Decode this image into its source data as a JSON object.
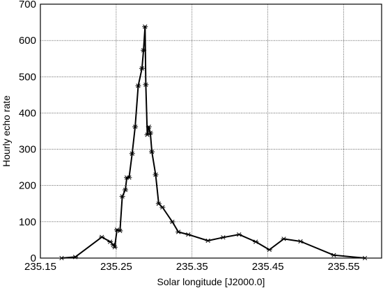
{
  "chart_data": {
    "type": "line",
    "title": "",
    "xlabel": "Solar longitude [J2000.0]",
    "ylabel": "Hourly echo rate",
    "xlim": [
      235.15,
      235.6
    ],
    "ylim": [
      0,
      700
    ],
    "x_ticks": [
      235.15,
      235.25,
      235.35,
      235.45,
      235.55
    ],
    "x_tick_labels": [
      "235.15",
      "235.25",
      "235.35",
      "235.45",
      "235.55"
    ],
    "y_ticks": [
      0,
      100,
      200,
      300,
      400,
      500,
      600,
      700
    ],
    "y_tick_labels": [
      "0",
      "100",
      "200",
      "300",
      "400",
      "500",
      "600",
      "700"
    ],
    "grid": true,
    "marker": "asterisk",
    "line_color": "#000000",
    "series": [
      {
        "x": [
          235.178,
          235.196,
          235.231,
          235.242,
          235.246,
          235.248,
          235.251,
          235.255,
          235.258,
          235.262,
          235.264,
          235.267,
          235.271,
          235.275,
          235.279,
          235.284,
          235.286,
          235.288,
          235.289,
          235.291,
          235.293,
          235.295,
          235.297,
          235.302,
          235.306,
          235.311,
          235.324,
          235.332,
          235.345,
          235.371,
          235.391,
          235.412,
          235.434,
          235.452,
          235.471,
          235.493,
          235.537,
          235.578
        ],
        "y": [
          0,
          3,
          58,
          45,
          37,
          30,
          78,
          75,
          170,
          188,
          222,
          222,
          288,
          362,
          475,
          523,
          573,
          638,
          478,
          340,
          362,
          345,
          293,
          230,
          150,
          140,
          100,
          72,
          65,
          48,
          57,
          65,
          45,
          23,
          53,
          46,
          8,
          0
        ]
      }
    ]
  }
}
